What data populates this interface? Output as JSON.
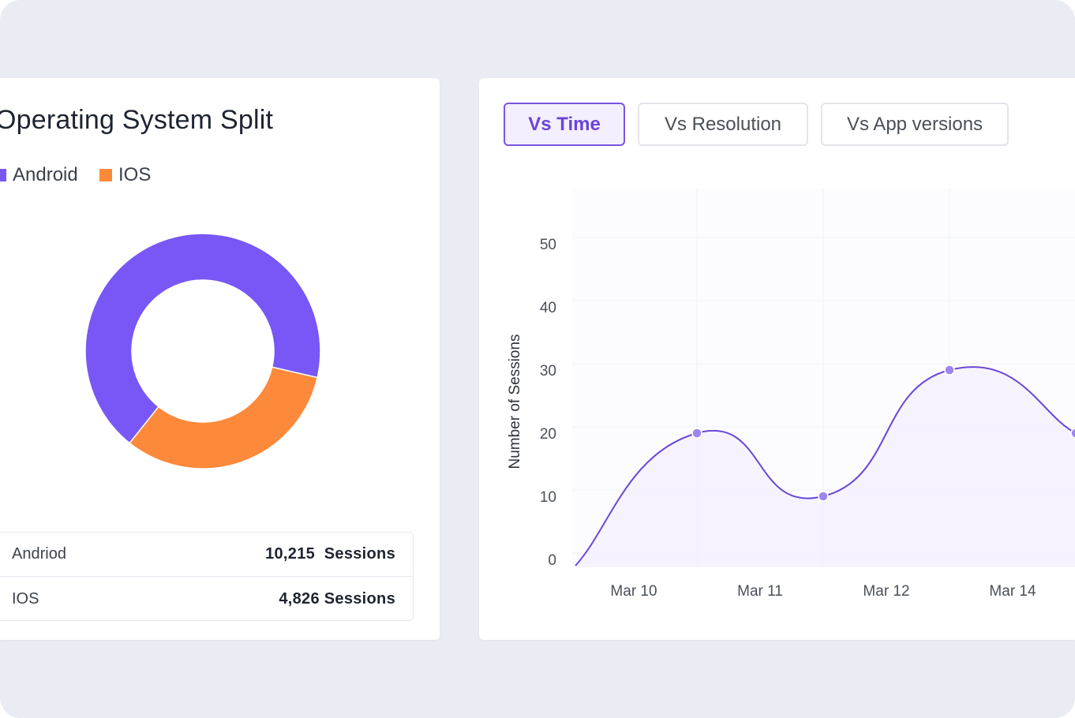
{
  "os_split": {
    "title": "Operating System Split",
    "legend": [
      {
        "label": "Android",
        "color": "#7857f6"
      },
      {
        "label": "IOS",
        "color": "#fd893a"
      }
    ],
    "table": [
      {
        "label": "Andriod",
        "value": "10,215",
        "unit": "Sessions"
      },
      {
        "label": "IOS",
        "value": "4,826",
        "unit": "Sessions"
      }
    ]
  },
  "tabs": [
    {
      "label": "Vs Time",
      "active": true
    },
    {
      "label": "Vs Resolution",
      "active": false
    },
    {
      "label": "Vs App versions",
      "active": false
    }
  ],
  "chart_data": [
    {
      "type": "pie",
      "title": "Operating System Split",
      "donut": true,
      "series": [
        {
          "name": "Android",
          "value": 10215,
          "color": "#7857f6"
        },
        {
          "name": "IOS",
          "value": 4826,
          "color": "#fd893a"
        }
      ]
    },
    {
      "type": "line",
      "categories": [
        "Mar 10",
        "Mar 11",
        "Mar 12",
        "Mar 14"
      ],
      "ylabel": "Number of Sessions",
      "yticks": [
        0,
        10,
        20,
        30,
        40,
        50
      ],
      "ylim": [
        0,
        55
      ],
      "grid": true,
      "smooth": true,
      "area_fill": true,
      "series": [
        {
          "points": [
            {
              "x": 0,
              "y": -1
            },
            {
              "x": 1,
              "y": 20
            },
            {
              "x": 2,
              "y": 10
            },
            {
              "x": 3,
              "y": 30
            },
            {
              "x": 4,
              "y": 20
            }
          ],
          "color": "#6b47d6"
        }
      ]
    }
  ]
}
